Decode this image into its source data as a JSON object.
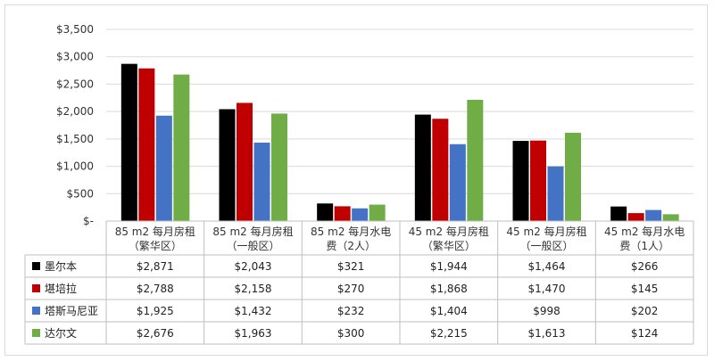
{
  "chart_data": {
    "type": "bar",
    "title": "",
    "xlabel": "",
    "ylabel": "",
    "ylim": [
      0,
      3500
    ],
    "yticks": [
      0,
      500,
      1000,
      1500,
      2000,
      2500,
      3000,
      3500
    ],
    "ytick_labels": [
      "$-",
      "$500",
      "$1,000",
      "$1,500",
      "$2,000",
      "$2,500",
      "$3,000",
      "$3,500"
    ],
    "grid": true,
    "legend": "bottom-table",
    "categories": [
      [
        "85 m2 每月房租",
        "（繁华区）"
      ],
      [
        "85 m2 每月房租",
        "（一般区）"
      ],
      [
        "85 m2 每月水电",
        "费（2人）"
      ],
      [
        "45 m2 每月房租",
        "（繁华区）"
      ],
      [
        "45 m2 每月房租",
        "（一般区）"
      ],
      [
        "45 m2 每月水电",
        "费（1人）"
      ]
    ],
    "series": [
      {
        "name": "墨尔本",
        "color": "#000000",
        "values": [
          2871,
          2043,
          321,
          1944,
          1464,
          266
        ],
        "labels": [
          "$2,871",
          "$2,043",
          "$321",
          "$1,944",
          "$1,464",
          "$266"
        ]
      },
      {
        "name": "堪培拉",
        "color": "#c00000",
        "values": [
          2788,
          2158,
          270,
          1868,
          1470,
          145
        ],
        "labels": [
          "$2,788",
          "$2,158",
          "$270",
          "$1,868",
          "$1,470",
          "$145"
        ]
      },
      {
        "name": "塔斯马尼亚",
        "color": "#4472c4",
        "values": [
          1925,
          1432,
          232,
          1404,
          998,
          202
        ],
        "labels": [
          "$1,925",
          "$1,432",
          "$232",
          "$1,404",
          "$998",
          "$202"
        ]
      },
      {
        "name": "达尔文",
        "color": "#70ad47",
        "values": [
          2676,
          1963,
          300,
          2215,
          1613,
          124
        ],
        "labels": [
          "$2,676",
          "$1,963",
          "$300",
          "$2,215",
          "$1,613",
          "$124"
        ]
      }
    ]
  }
}
